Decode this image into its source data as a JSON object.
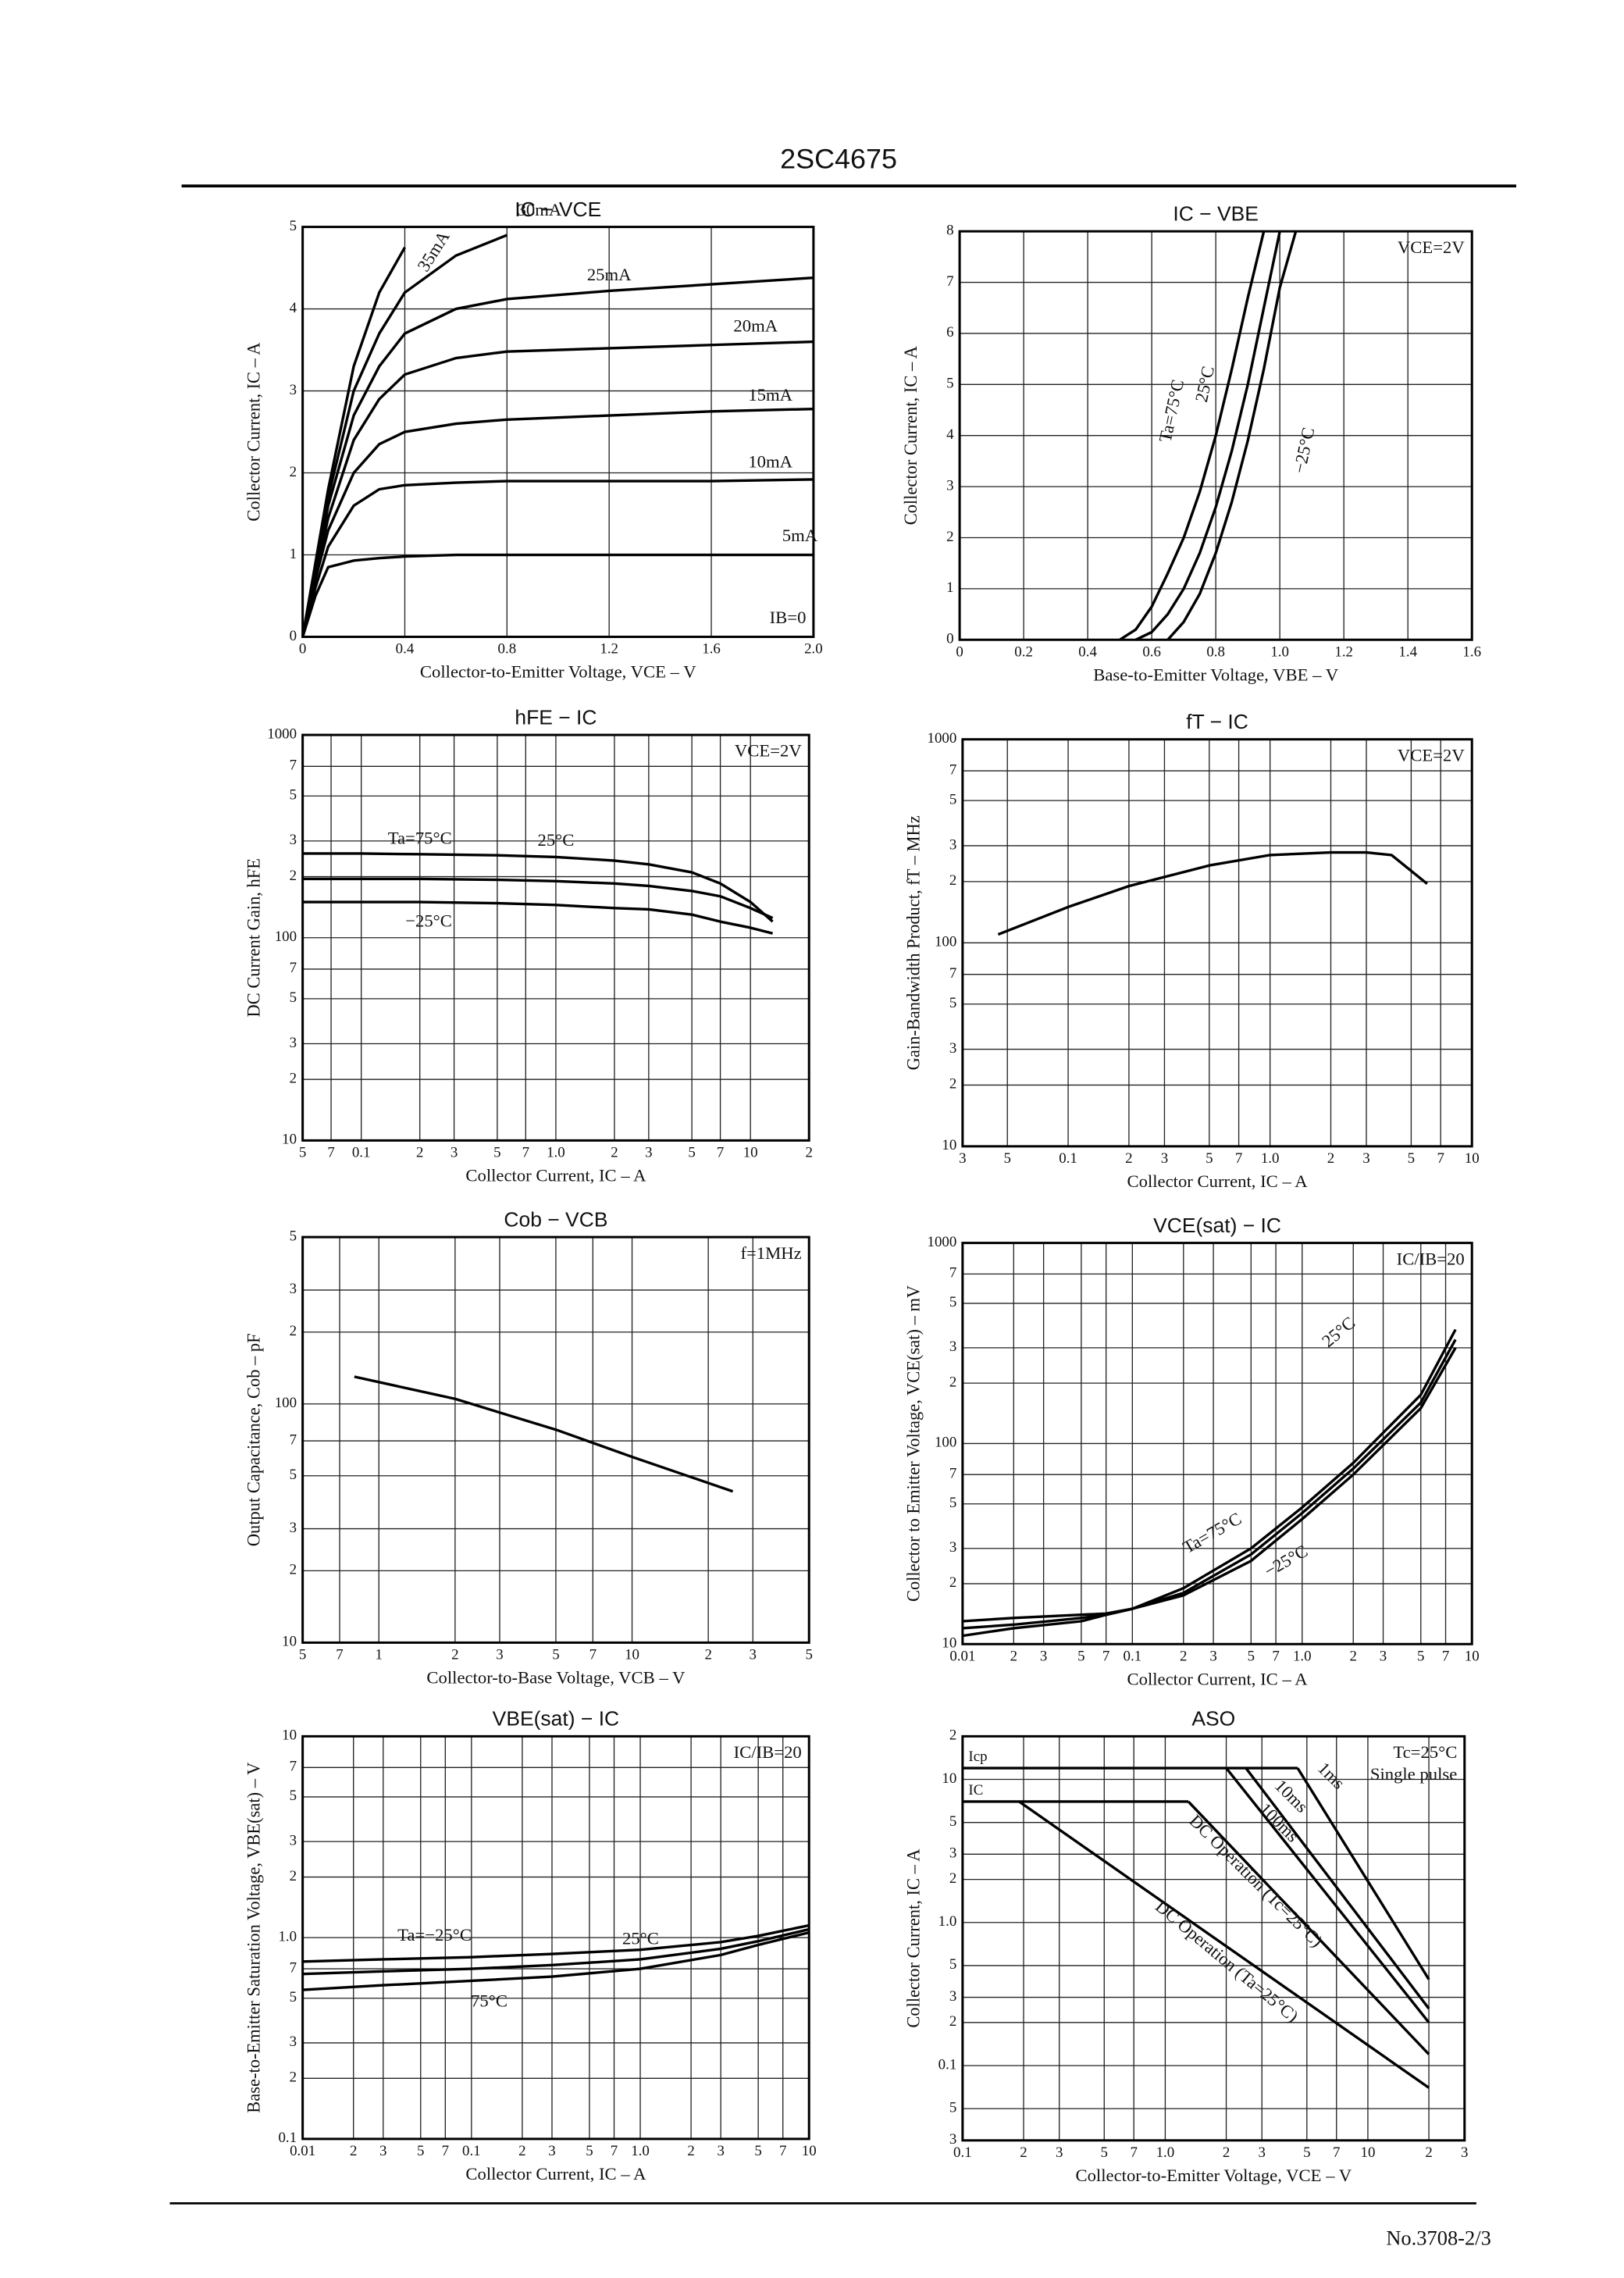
{
  "header": {
    "title": "2SC4675"
  },
  "footer": {
    "text": "No.3708-2/3"
  },
  "chart_data": [
    {
      "type": "line",
      "title": "IC − VCE",
      "xlabel": "Collector-to-Emitter Voltage, VCE – V",
      "ylabel": "Collector Current, IC – A",
      "xscale": "linear",
      "yscale": "linear",
      "grid": true,
      "xlim": [
        0,
        2
      ],
      "xticks": [
        0,
        0.4,
        0.8,
        1.2,
        1.6,
        {
          "value": 2,
          "label": "2.0"
        }
      ],
      "ylim": [
        0,
        5
      ],
      "yticks": [
        0,
        1,
        2,
        3,
        4,
        5
      ],
      "annotations": [
        "IB=0"
      ],
      "annotation_corner": "lower right",
      "x": [
        0,
        0.05,
        0.1,
        0.2,
        0.3,
        0.4,
        0.6,
        0.8,
        1.2,
        1.6,
        2.0
      ],
      "series": [
        {
          "name": "35mA",
          "color": "#000000",
          "values": [
            0,
            0.9,
            1.8,
            3.3,
            4.2,
            4.75,
            null,
            null,
            null,
            null,
            null
          ]
        },
        {
          "name": "30mA",
          "color": "#000000",
          "values": [
            0,
            0.85,
            1.7,
            3.0,
            3.7,
            4.2,
            4.65,
            4.9,
            null,
            null,
            null
          ]
        },
        {
          "name": "25mA",
          "color": "#000000",
          "values": [
            0,
            0.8,
            1.6,
            2.7,
            3.3,
            3.7,
            4.0,
            4.12,
            4.22,
            4.3,
            4.38
          ]
        },
        {
          "name": "20mA",
          "color": "#000000",
          "values": [
            0,
            0.75,
            1.45,
            2.4,
            2.9,
            3.2,
            3.4,
            3.48,
            3.52,
            3.56,
            3.6
          ]
        },
        {
          "name": "15mA",
          "color": "#000000",
          "values": [
            0,
            0.7,
            1.3,
            2.0,
            2.35,
            2.5,
            2.6,
            2.65,
            2.7,
            2.75,
            2.78
          ]
        },
        {
          "name": "10mA",
          "color": "#000000",
          "values": [
            0,
            0.6,
            1.1,
            1.6,
            1.8,
            1.85,
            1.88,
            1.9,
            1.9,
            1.9,
            1.92
          ]
        },
        {
          "name": "5mA",
          "color": "#000000",
          "values": [
            0,
            0.5,
            0.85,
            0.93,
            0.96,
            0.98,
            1.0,
            1.0,
            1.0,
            1.0,
            1.0
          ]
        }
      ]
    },
    {
      "type": "line",
      "title": "IC − VBE",
      "xlabel": "Base-to-Emitter Voltage, VBE – V",
      "ylabel": "Collector Current, IC – A",
      "xscale": "linear",
      "yscale": "linear",
      "grid": true,
      "xlim": [
        0,
        1.6
      ],
      "xticks": [
        0,
        0.2,
        0.4,
        0.6,
        0.8,
        {
          "value": 1,
          "label": "1.0"
        },
        1.2,
        1.4,
        1.6
      ],
      "ylim": [
        0,
        8
      ],
      "yticks": [
        0,
        1,
        2,
        3,
        4,
        5,
        6,
        7,
        8
      ],
      "annotations": [
        "VCE=2V"
      ],
      "annotation_corner": "upper right",
      "x": [
        0.5,
        0.55,
        0.6,
        0.65,
        0.7,
        0.75,
        0.8,
        0.85,
        0.9,
        0.95,
        1.0,
        1.05
      ],
      "series": [
        {
          "name": "Ta=75°C",
          "color": "#000000",
          "values": [
            0,
            0.2,
            0.65,
            1.3,
            2.0,
            2.9,
            4.0,
            5.3,
            6.7,
            8,
            null,
            null
          ]
        },
        {
          "name": "25°C",
          "color": "#000000",
          "values": [
            null,
            0,
            0.15,
            0.5,
            1.0,
            1.7,
            2.6,
            3.7,
            5.0,
            6.5,
            8,
            null
          ]
        },
        {
          "name": "−25°C",
          "color": "#000000",
          "values": [
            null,
            null,
            null,
            0,
            0.35,
            0.9,
            1.7,
            2.7,
            3.9,
            5.3,
            6.9,
            8
          ]
        }
      ]
    },
    {
      "type": "line",
      "title": "hFE − IC",
      "xlabel": "Collector Current, IC – A",
      "ylabel": "DC Current Gain, hFE",
      "xscale": "log",
      "yscale": "log",
      "grid": true,
      "xlim": [
        0.05,
        20
      ],
      "xticks": [
        {
          "value": 0.05,
          "label": "5"
        },
        {
          "value": 0.07,
          "label": "7"
        },
        0.1,
        {
          "value": 0.2,
          "label": "2"
        },
        {
          "value": 0.3,
          "label": "3"
        },
        {
          "value": 0.5,
          "label": "5"
        },
        {
          "value": 0.7,
          "label": "7"
        },
        {
          "value": 1,
          "label": "1.0"
        },
        2,
        3,
        5,
        7,
        10,
        {
          "value": 20,
          "label": "2"
        }
      ],
      "ylim": [
        10,
        1000
      ],
      "yticks": [
        10,
        {
          "value": 20,
          "label": "2"
        },
        {
          "value": 30,
          "label": "3"
        },
        {
          "value": 50,
          "label": "5"
        },
        {
          "value": 70,
          "label": "7"
        },
        100,
        {
          "value": 200,
          "label": "2"
        },
        {
          "value": 300,
          "label": "3"
        },
        {
          "value": 500,
          "label": "5"
        },
        {
          "value": 700,
          "label": "7"
        },
        1000
      ],
      "annotations": [
        "VCE=2V"
      ],
      "annotation_corner": "upper right",
      "x": [
        0.05,
        0.1,
        0.2,
        0.5,
        1,
        2,
        3,
        5,
        7,
        10,
        13
      ],
      "series": [
        {
          "name": "Ta=75°C",
          "color": "#000000",
          "values": [
            260,
            260,
            258,
            255,
            250,
            240,
            230,
            210,
            185,
            150,
            120
          ]
        },
        {
          "name": "25°C",
          "color": "#000000",
          "values": [
            195,
            195,
            195,
            193,
            190,
            185,
            180,
            170,
            160,
            140,
            125
          ]
        },
        {
          "name": "−25°C",
          "color": "#000000",
          "values": [
            150,
            150,
            150,
            148,
            145,
            140,
            138,
            130,
            120,
            112,
            105
          ]
        }
      ]
    },
    {
      "type": "line",
      "title": "fT − IC",
      "xlabel": "Collector Current, IC – A",
      "ylabel": "Gain-Bandwidth Product, fT – MHz",
      "xscale": "log",
      "yscale": "log",
      "grid": true,
      "xlim": [
        0.03,
        10
      ],
      "xticks": [
        {
          "value": 0.03,
          "label": "3"
        },
        {
          "value": 0.05,
          "label": "5"
        },
        0.1,
        {
          "value": 0.2,
          "label": "2"
        },
        {
          "value": 0.3,
          "label": "3"
        },
        {
          "value": 0.5,
          "label": "5"
        },
        {
          "value": 0.7,
          "label": "7"
        },
        {
          "value": 1,
          "label": "1.0"
        },
        2,
        3,
        5,
        7,
        10
      ],
      "ylim": [
        10,
        1000
      ],
      "yticks": [
        10,
        {
          "value": 20,
          "label": "2"
        },
        {
          "value": 30,
          "label": "3"
        },
        {
          "value": 50,
          "label": "5"
        },
        {
          "value": 70,
          "label": "7"
        },
        100,
        {
          "value": 200,
          "label": "2"
        },
        {
          "value": 300,
          "label": "3"
        },
        {
          "value": 500,
          "label": "5"
        },
        {
          "value": 700,
          "label": "7"
        },
        1000
      ],
      "annotations": [
        "VCE=2V"
      ],
      "annotation_corner": "upper right",
      "x": [
        0.045,
        0.1,
        0.2,
        0.5,
        1,
        2,
        3,
        4,
        6
      ],
      "series": [
        {
          "color": "#000000",
          "values": [
            110,
            150,
            190,
            240,
            270,
            278,
            278,
            270,
            195
          ]
        }
      ]
    },
    {
      "type": "line",
      "title": "Cob − VCB",
      "xlabel": "Collector-to-Base Voltage, VCB – V",
      "ylabel": "Output Capacitance, Cob – pF",
      "xscale": "log",
      "yscale": "log",
      "grid": true,
      "xlim": [
        0.5,
        50
      ],
      "xticks": [
        {
          "value": 0.5,
          "label": "5"
        },
        {
          "value": 0.7,
          "label": "7"
        },
        1,
        2,
        3,
        5,
        7,
        10,
        {
          "value": 20,
          "label": "2"
        },
        {
          "value": 30,
          "label": "3"
        },
        {
          "value": 50,
          "label": "5"
        }
      ],
      "ylim": [
        10,
        500
      ],
      "yticks": [
        10,
        {
          "value": 20,
          "label": "2"
        },
        {
          "value": 30,
          "label": "3"
        },
        {
          "value": 50,
          "label": "5"
        },
        {
          "value": 70,
          "label": "7"
        },
        100,
        {
          "value": 200,
          "label": "2"
        },
        {
          "value": 300,
          "label": "3"
        },
        {
          "value": 500,
          "label": "5"
        }
      ],
      "annotations": [
        "f=1MHz"
      ],
      "annotation_corner": "upper right",
      "x": [
        0.8,
        2,
        5,
        10,
        25
      ],
      "series": [
        {
          "color": "#000000",
          "values": [
            130,
            105,
            78,
            60,
            43
          ]
        }
      ]
    },
    {
      "type": "line",
      "title": "VCE(sat) − IC",
      "xlabel": "Collector Current, IC – A",
      "ylabel": "Collector to Emitter Voltage, VCE(sat) – mV",
      "xscale": "log",
      "yscale": "log",
      "grid": true,
      "xlim": [
        0.01,
        10
      ],
      "xticks": [
        0.01,
        {
          "value": 0.02,
          "label": "2"
        },
        {
          "value": 0.03,
          "label": "3"
        },
        {
          "value": 0.05,
          "label": "5"
        },
        {
          "value": 0.07,
          "label": "7"
        },
        0.1,
        {
          "value": 0.2,
          "label": "2"
        },
        {
          "value": 0.3,
          "label": "3"
        },
        {
          "value": 0.5,
          "label": "5"
        },
        {
          "value": 0.7,
          "label": "7"
        },
        {
          "value": 1,
          "label": "1.0"
        },
        2,
        3,
        5,
        7,
        10
      ],
      "ylim": [
        10,
        1000
      ],
      "yticks": [
        10,
        {
          "value": 20,
          "label": "2"
        },
        {
          "value": 30,
          "label": "3"
        },
        {
          "value": 50,
          "label": "5"
        },
        {
          "value": 70,
          "label": "7"
        },
        100,
        {
          "value": 200,
          "label": "2"
        },
        {
          "value": 300,
          "label": "3"
        },
        {
          "value": 500,
          "label": "5"
        },
        {
          "value": 700,
          "label": "7"
        },
        1000
      ],
      "annotations": [
        "IC/IB=20"
      ],
      "annotation_corner": "upper right",
      "x": [
        0.01,
        0.02,
        0.05,
        0.07,
        0.1,
        0.2,
        0.5,
        1,
        2,
        5,
        8
      ],
      "series": [
        {
          "name": "25°C",
          "color": "#000000",
          "values": [
            12,
            12.5,
            13.5,
            14,
            15,
            19,
            30,
            48,
            80,
            175,
            370
          ]
        },
        {
          "name": "Ta=75°C",
          "color": "#000000",
          "values": [
            11,
            12,
            13,
            14,
            15,
            18,
            28,
            45,
            75,
            160,
            330
          ]
        },
        {
          "name": "−25°C",
          "color": "#000000",
          "values": [
            13,
            13.5,
            14,
            14.2,
            15,
            17.5,
            26,
            42,
            70,
            150,
            300
          ]
        }
      ]
    },
    {
      "type": "line",
      "title": "VBE(sat) − IC",
      "xlabel": "Collector Current, IC – A",
      "ylabel": "Base-to-Emitter Saturation Voltage, VBE(sat) – V",
      "xscale": "log",
      "yscale": "log",
      "grid": true,
      "xlim": [
        0.01,
        10
      ],
      "xticks": [
        0.01,
        {
          "value": 0.02,
          "label": "2"
        },
        {
          "value": 0.03,
          "label": "3"
        },
        {
          "value": 0.05,
          "label": "5"
        },
        {
          "value": 0.07,
          "label": "7"
        },
        0.1,
        {
          "value": 0.2,
          "label": "2"
        },
        {
          "value": 0.3,
          "label": "3"
        },
        {
          "value": 0.5,
          "label": "5"
        },
        {
          "value": 0.7,
          "label": "7"
        },
        {
          "value": 1,
          "label": "1.0"
        },
        2,
        3,
        5,
        7,
        10
      ],
      "ylim": [
        0.1,
        10
      ],
      "yticks": [
        0.1,
        {
          "value": 0.2,
          "label": "2"
        },
        {
          "value": 0.3,
          "label": "3"
        },
        {
          "value": 0.5,
          "label": "5"
        },
        {
          "value": 0.7,
          "label": "7"
        },
        {
          "value": 1,
          "label": "1.0"
        },
        2,
        3,
        5,
        7,
        10
      ],
      "annotations": [
        "IC/IB=20"
      ],
      "annotation_corner": "upper right",
      "x": [
        0.01,
        0.03,
        0.1,
        0.3,
        1,
        3,
        5,
        10
      ],
      "series": [
        {
          "name": "Ta=−25°C",
          "color": "#000000",
          "values": [
            0.76,
            0.78,
            0.8,
            0.83,
            0.87,
            0.95,
            1.02,
            1.15
          ]
        },
        {
          "name": "25°C",
          "color": "#000000",
          "values": [
            0.66,
            0.68,
            0.7,
            0.73,
            0.78,
            0.88,
            0.96,
            1.1
          ]
        },
        {
          "name": "75°C",
          "color": "#000000",
          "values": [
            0.55,
            0.58,
            0.61,
            0.64,
            0.7,
            0.82,
            0.92,
            1.06
          ]
        }
      ]
    },
    {
      "type": "line",
      "title": "ASO",
      "xlabel": "Collector-to-Emitter Voltage, VCE – V",
      "ylabel": "Collector Current, IC – A",
      "xscale": "log",
      "yscale": "log",
      "grid": true,
      "xlim": [
        0.1,
        30
      ],
      "xticks": [
        0.1,
        {
          "value": 0.2,
          "label": "2"
        },
        {
          "value": 0.3,
          "label": "3"
        },
        {
          "value": 0.5,
          "label": "5"
        },
        {
          "value": 0.7,
          "label": "7"
        },
        {
          "value": 1,
          "label": "1.0"
        },
        2,
        3,
        5,
        7,
        10,
        {
          "value": 20,
          "label": "2"
        },
        {
          "value": 30,
          "label": "3"
        }
      ],
      "ylim": [
        0.03,
        20
      ],
      "yticks": [
        {
          "value": 0.03,
          "label": "3"
        },
        {
          "value": 0.05,
          "label": "5"
        },
        0.1,
        {
          "value": 0.2,
          "label": "2"
        },
        {
          "value": 0.3,
          "label": "3"
        },
        {
          "value": 0.5,
          "label": "5"
        },
        {
          "value": 1,
          "label": "1.0"
        },
        2,
        3,
        5,
        10,
        {
          "value": 20,
          "label": "2"
        }
      ],
      "annotations": [
        "Tc=25°C",
        "Single pulse"
      ],
      "annotation_corner": "upper right",
      "limits": [
        {
          "label": "Icp",
          "value": 12,
          "x_end": 4.5
        },
        {
          "label": "IC",
          "value": 7,
          "x_end": 1.3
        }
      ],
      "series": [
        {
          "name": "1ms",
          "color": "#000000",
          "x": [
            4.5,
            20
          ],
          "values": [
            12,
            0.4
          ]
        },
        {
          "name": "10ms",
          "color": "#000000",
          "x": [
            2.5,
            20
          ],
          "values": [
            12,
            0.25
          ]
        },
        {
          "name": "100ms",
          "color": "#000000",
          "x": [
            2,
            20
          ],
          "values": [
            12,
            0.2
          ]
        },
        {
          "name": "DC Operation (Tc=25°C)",
          "color": "#000000",
          "x": [
            1.3,
            20
          ],
          "values": [
            7,
            0.12
          ]
        },
        {
          "name": "DC Operation (Ta=25°C)",
          "color": "#000000",
          "x": [
            0.19,
            20
          ],
          "values": [
            7,
            0.07
          ]
        }
      ]
    }
  ]
}
